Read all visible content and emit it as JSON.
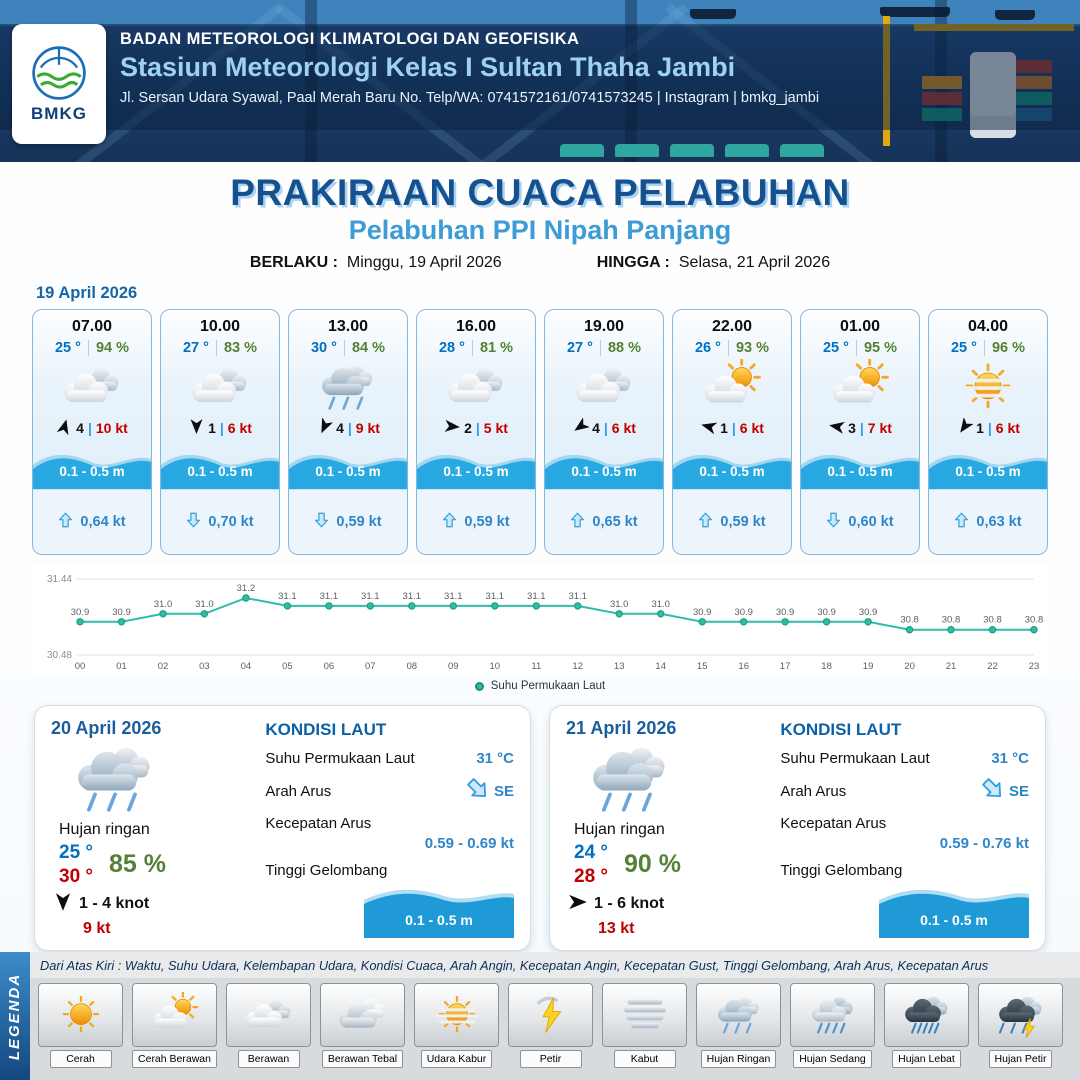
{
  "ui": {
    "sep": "|"
  },
  "header": {
    "logo_text": "BMKG",
    "agency": "BADAN METEOROLOGI KLIMATOLOGI DAN GEOFISIKA",
    "station": "Stasiun Meteorologi Kelas I Sultan Thaha Jambi",
    "address": "Jl. Sersan Udara Syawal, Paal Merah Baru No. Telp/WA: 0741572161/0741573245 | Instagram | bmkg_jambi"
  },
  "title": {
    "main": "PRAKIRAAN CUACA PELABUHAN",
    "subtitle": "Pelabuhan PPI Nipah Panjang",
    "valid_from_label": "BERLAKU :",
    "valid_from": "Minggu, 19 April 2026",
    "valid_to_label": "HINGGA :",
    "valid_to": "Selasa, 21 April 2026"
  },
  "hourly": {
    "date": "19 April 2026",
    "cards": [
      {
        "time": "07.00",
        "temp": "25 °",
        "rh": "94 %",
        "icon": "berawan",
        "wind_deg": 15,
        "wind_speed": "4",
        "gust": "10 kt",
        "wave": "0.1 - 0.5 m",
        "current_dir": "up",
        "current": "0,64 kt"
      },
      {
        "time": "10.00",
        "temp": "27 °",
        "rh": "83 %",
        "icon": "berawan",
        "wind_deg": 180,
        "wind_speed": "1",
        "gust": "6 kt",
        "wave": "0.1 - 0.5 m",
        "current_dir": "down",
        "current": "0,70 kt"
      },
      {
        "time": "13.00",
        "temp": "30 °",
        "rh": "84 %",
        "icon": "hujan-ringan",
        "wind_deg": 205,
        "wind_speed": "4",
        "gust": "9 kt",
        "wave": "0.1 - 0.5 m",
        "current_dir": "down",
        "current": "0,59 kt"
      },
      {
        "time": "16.00",
        "temp": "28 °",
        "rh": "81 %",
        "icon": "berawan",
        "wind_deg": 95,
        "wind_speed": "2",
        "gust": "5 kt",
        "wave": "0.1 - 0.5 m",
        "current_dir": "up",
        "current": "0,59 kt"
      },
      {
        "time": "19.00",
        "temp": "27 °",
        "rh": "88 %",
        "icon": "berawan",
        "wind_deg": 235,
        "wind_speed": "4",
        "gust": "6 kt",
        "wave": "0.1 - 0.5 m",
        "current_dir": "up",
        "current": "0,65 kt"
      },
      {
        "time": "22.00",
        "temp": "26 °",
        "rh": "93 %",
        "icon": "cerah-berawan",
        "wind_deg": 285,
        "wind_speed": "1",
        "gust": "6 kt",
        "wave": "0.1 - 0.5 m",
        "current_dir": "up",
        "current": "0,59 kt"
      },
      {
        "time": "01.00",
        "temp": "25 °",
        "rh": "95 %",
        "icon": "cerah-berawan",
        "wind_deg": 280,
        "wind_speed": "3",
        "gust": "7 kt",
        "wave": "0.1 - 0.5 m",
        "current_dir": "down",
        "current": "0,60 kt"
      },
      {
        "time": "04.00",
        "temp": "25 °",
        "rh": "96 %",
        "icon": "udara-kabur",
        "wind_deg": 215,
        "wind_speed": "1",
        "gust": "6 kt",
        "wave": "0.1 - 0.5 m",
        "current_dir": "up",
        "current": "0,63 kt"
      }
    ]
  },
  "chart_data": {
    "type": "line",
    "title": "",
    "xlabel": "",
    "ylabel": "",
    "x": [
      "00",
      "01",
      "02",
      "03",
      "04",
      "05",
      "06",
      "07",
      "08",
      "09",
      "10",
      "11",
      "12",
      "13",
      "14",
      "15",
      "16",
      "17",
      "18",
      "19",
      "20",
      "21",
      "22",
      "23"
    ],
    "values": [
      30.9,
      30.9,
      31.0,
      31.0,
      31.2,
      31.1,
      31.1,
      31.1,
      31.1,
      31.1,
      31.1,
      31.1,
      31.1,
      31.0,
      31.0,
      30.9,
      30.9,
      30.9,
      30.9,
      30.9,
      30.8,
      30.8,
      30.8,
      30.8
    ],
    "ylim": [
      30.48,
      31.44
    ],
    "y_ticks": [
      "31.44",
      "30.48"
    ],
    "legend": "Suhu Permukaan Laut",
    "legend_position": "bottom",
    "grid": false,
    "line_color": "#2cbda6"
  },
  "daily": [
    {
      "date": "20 April 2026",
      "icon": "hujan-ringan",
      "condition": "Hujan ringan",
      "temp_min": "25 °",
      "temp_max": "30 °",
      "rh": "85 %",
      "wind_deg": 180,
      "wind": "1  - 4 knot",
      "gust": "9 kt",
      "sea": {
        "title": "KONDISI LAUT",
        "sst_label": "Suhu Permukaan Laut",
        "sst": "31 °C",
        "dir_label": "Arah Arus",
        "dir": "SE",
        "speed_label": "Kecepatan Arus",
        "speed": "0.59  - 0.69 kt",
        "wave_label": "Tinggi Gelombang",
        "wave": "0.1 - 0.5 m"
      }
    },
    {
      "date": "21 April 2026",
      "icon": "hujan-ringan",
      "condition": "Hujan ringan",
      "temp_min": "24 °",
      "temp_max": "28 °",
      "rh": "90 %",
      "wind_deg": 90,
      "wind": "1  - 6 knot",
      "gust": "13 kt",
      "sea": {
        "title": "KONDISI LAUT",
        "sst_label": "Suhu Permukaan Laut",
        "sst": "31 °C",
        "dir_label": "Arah Arus",
        "dir": "SE",
        "speed_label": "Kecepatan Arus",
        "speed": "0.59  - 0.76 kt",
        "wave_label": "Tinggi Gelombang",
        "wave": "0.1 - 0.5 m"
      }
    }
  ],
  "legend": {
    "title": "LEGENDA",
    "description": "Dari Atas Kiri : Waktu, Suhu Udara, Kelembapan Udara, Kondisi Cuaca, Arah Angin, Kecepatan Angin, Kecepatan Gust, Tinggi Gelombang, Arah Arus, Kecepatan Arus",
    "items": [
      {
        "label": "Cerah",
        "icon": "cerah"
      },
      {
        "label": "Cerah Berawan",
        "icon": "cerah-berawan"
      },
      {
        "label": "Berawan",
        "icon": "berawan"
      },
      {
        "label": "Berawan Tebal",
        "icon": "berawan-tebal"
      },
      {
        "label": "Udara Kabur",
        "icon": "udara-kabur"
      },
      {
        "label": "Petir",
        "icon": "petir"
      },
      {
        "label": "Kabut",
        "icon": "kabut"
      },
      {
        "label": "Hujan Ringan",
        "icon": "hujan-ringan"
      },
      {
        "label": "Hujan Sedang",
        "icon": "hujan-sedang"
      },
      {
        "label": "Hujan Lebat",
        "icon": "hujan-lebat"
      },
      {
        "label": "Hujan Petir",
        "icon": "hujan-petir"
      }
    ]
  }
}
